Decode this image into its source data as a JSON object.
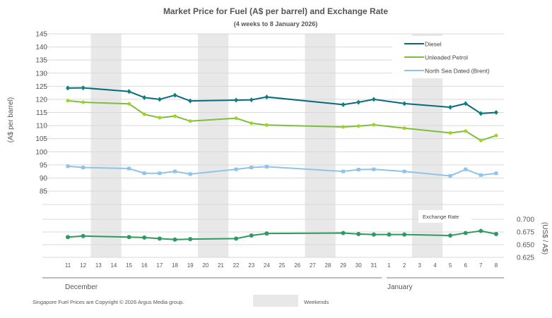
{
  "chart_data": {
    "type": "line",
    "title": "Market Price for Fuel (A$ per barrel) and Exchange Rate",
    "subtitle": "(4 weeks to 8 January 2026)",
    "ylabel": "(A$ per barrel)",
    "y2label": "(US$ / A$)",
    "ylim": [
      85,
      145
    ],
    "yticks": [
      "145",
      "140",
      "135",
      "130",
      "125",
      "120",
      "115",
      "110",
      "105",
      "100",
      "95",
      "90",
      "85"
    ],
    "y2lim": [
      0.625,
      0.7
    ],
    "y2ticks": [
      "0.700",
      "0.675",
      "0.650",
      "0.625"
    ],
    "x": [
      "11",
      "12",
      "13",
      "14",
      "15",
      "16",
      "17",
      "18",
      "19",
      "20",
      "21",
      "22",
      "23",
      "24",
      "25",
      "26",
      "27",
      "28",
      "29",
      "30",
      "31",
      "1",
      "2",
      "3",
      "4",
      "5",
      "6",
      "7",
      "8"
    ],
    "months": [
      "December",
      "January"
    ],
    "weekends": [
      [
        "13",
        "14"
      ],
      [
        "20",
        "21"
      ],
      [
        "27",
        "28"
      ],
      [
        "3",
        "4"
      ]
    ],
    "weekends_label": "Weekends",
    "legend_position": "top-right",
    "series": [
      {
        "name": "Diesel",
        "color": "#086a7e",
        "axis": "left",
        "points": [
          [
            "11",
            124.3
          ],
          [
            "12",
            124.4
          ],
          [
            "15",
            123.0
          ],
          [
            "16",
            120.7
          ],
          [
            "17",
            120.0
          ],
          [
            "18",
            121.6
          ],
          [
            "19",
            119.4
          ],
          [
            "22",
            119.7
          ],
          [
            "23",
            119.8
          ],
          [
            "24",
            120.9
          ],
          [
            "29",
            118.0
          ],
          [
            "30",
            118.9
          ],
          [
            "31",
            120.0
          ],
          [
            "2",
            118.4
          ],
          [
            "5",
            117.0
          ],
          [
            "6",
            118.4
          ],
          [
            "7",
            114.6
          ],
          [
            "8",
            115.0
          ]
        ]
      },
      {
        "name": "Unleaded Petrol",
        "color": "#7cbf3c",
        "axis": "left",
        "points": [
          [
            "11",
            119.5
          ],
          [
            "12",
            118.9
          ],
          [
            "15",
            118.3
          ],
          [
            "16",
            114.3
          ],
          [
            "17",
            113.0
          ],
          [
            "18",
            113.6
          ],
          [
            "19",
            111.7
          ],
          [
            "22",
            112.8
          ],
          [
            "23",
            110.9
          ],
          [
            "24",
            110.2
          ],
          [
            "29",
            109.5
          ],
          [
            "30",
            109.8
          ],
          [
            "31",
            110.3
          ],
          [
            "2",
            109.0
          ],
          [
            "5",
            107.2
          ],
          [
            "6",
            107.9
          ],
          [
            "7",
            104.3
          ],
          [
            "8",
            106.2
          ]
        ]
      },
      {
        "name": "North Sea Dated (Brent)",
        "color": "#8fc3ea",
        "axis": "left",
        "points": [
          [
            "11",
            94.5
          ],
          [
            "12",
            94.0
          ],
          [
            "15",
            93.6
          ],
          [
            "16",
            91.8
          ],
          [
            "17",
            91.8
          ],
          [
            "18",
            92.5
          ],
          [
            "19",
            91.5
          ],
          [
            "22",
            93.3
          ],
          [
            "23",
            94.0
          ],
          [
            "24",
            94.3
          ],
          [
            "29",
            92.5
          ],
          [
            "30",
            93.2
          ],
          [
            "31",
            93.3
          ],
          [
            "2",
            92.5
          ],
          [
            "5",
            90.8
          ],
          [
            "6",
            93.3
          ],
          [
            "7",
            91.1
          ],
          [
            "8",
            91.8
          ]
        ]
      },
      {
        "name": "Exchange Rate",
        "color": "#2e9a5e",
        "axis": "right",
        "points": [
          [
            "11",
            0.665
          ],
          [
            "12",
            0.667
          ],
          [
            "15",
            0.665
          ],
          [
            "16",
            0.664
          ],
          [
            "17",
            0.662
          ],
          [
            "18",
            0.66
          ],
          [
            "19",
            0.661
          ],
          [
            "22",
            0.662
          ],
          [
            "23",
            0.668
          ],
          [
            "24",
            0.672
          ],
          [
            "29",
            0.673
          ],
          [
            "30",
            0.671
          ],
          [
            "31",
            0.67
          ],
          [
            "1",
            0.67
          ],
          [
            "2",
            0.67
          ],
          [
            "5",
            0.668
          ],
          [
            "6",
            0.673
          ],
          [
            "7",
            0.677
          ],
          [
            "8",
            0.671
          ]
        ]
      }
    ]
  },
  "footer": {
    "copyright": "Singapore  Fuel  Prices  are  Copyright  ©  2026  Argus  Media  group."
  }
}
